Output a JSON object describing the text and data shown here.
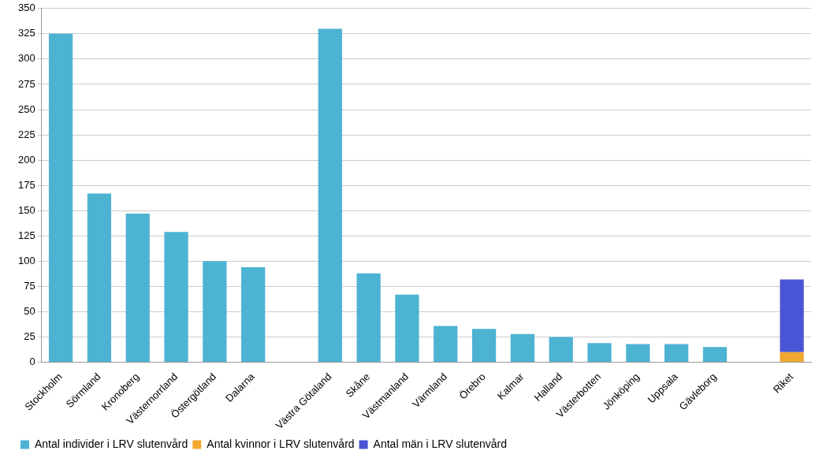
{
  "chart_data": {
    "type": "bar",
    "stacked": true,
    "categories": [
      "Stockholm",
      "Sörmland",
      "Kronoberg",
      "Västernorrland",
      "Östergötland",
      "Dalarna",
      null,
      "Västra Götaland",
      "Skåne",
      "Västmanland",
      "Värmland",
      "Örebro",
      "Kalmar",
      "Halland",
      "Västerbotten",
      "Jönköping",
      "Uppsala",
      "Gävleborg",
      null,
      "Riket"
    ],
    "series": [
      {
        "name": "Antal individer i LRV slutenvård",
        "color": "#4db3d3",
        "values": [
          325,
          167,
          147,
          129,
          100,
          94,
          null,
          330,
          88,
          67,
          36,
          33,
          28,
          25,
          19,
          18,
          18,
          15,
          null,
          null
        ]
      },
      {
        "name": "Antal kvinnor i LRV slutenvård",
        "color": "#f0a830",
        "values": [
          null,
          null,
          null,
          null,
          null,
          null,
          null,
          null,
          null,
          null,
          null,
          null,
          null,
          null,
          null,
          null,
          null,
          null,
          null,
          10
        ]
      },
      {
        "name": "Antal män i LRV slutenvård",
        "color": "#4a55d6",
        "values": [
          null,
          null,
          null,
          null,
          null,
          null,
          null,
          null,
          null,
          null,
          null,
          null,
          null,
          null,
          null,
          null,
          null,
          null,
          null,
          72
        ]
      }
    ],
    "ylim": [
      0,
      350
    ],
    "yticks": [
      0,
      25,
      50,
      75,
      100,
      125,
      150,
      175,
      200,
      225,
      250,
      275,
      300,
      325,
      350
    ],
    "grid": "y",
    "legend": "bottom left"
  }
}
